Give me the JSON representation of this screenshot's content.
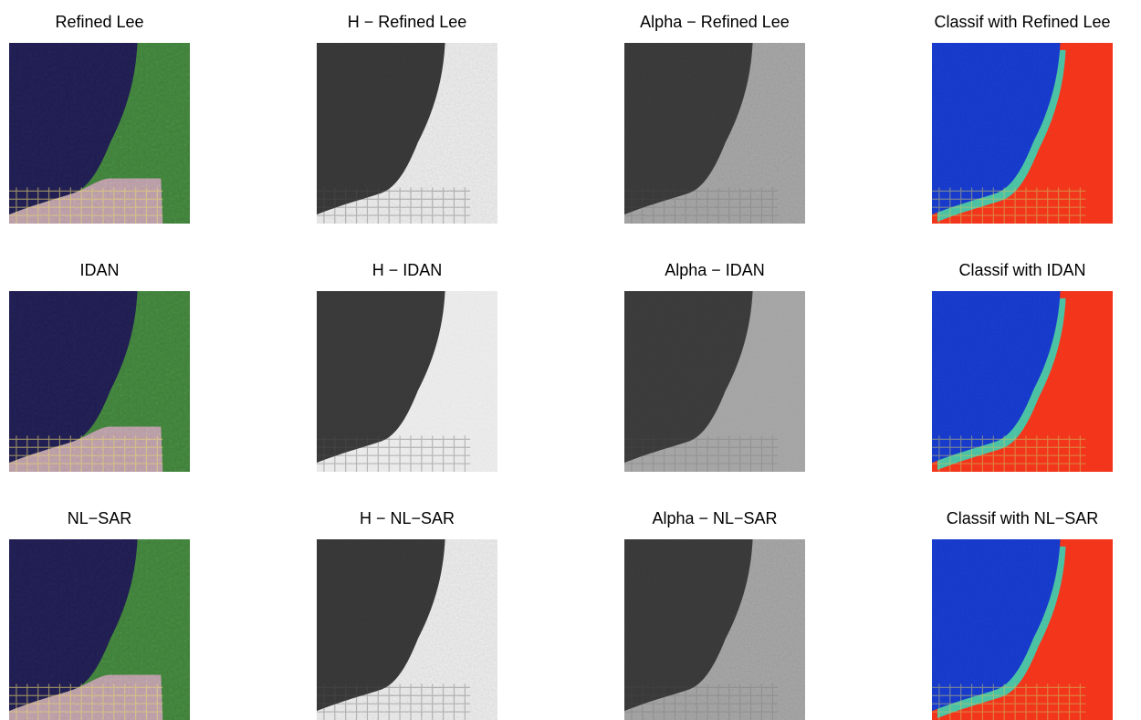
{
  "panels": [
    {
      "title": "Refined Lee",
      "kind": "rgb",
      "variant": "refined"
    },
    {
      "title": "H − Refined Lee",
      "kind": "entropy",
      "variant": "refined"
    },
    {
      "title": "Alpha − Refined Lee",
      "kind": "alpha",
      "variant": "refined"
    },
    {
      "title": "Classif with Refined Lee",
      "kind": "classif",
      "variant": "refined"
    },
    {
      "title": "IDAN",
      "kind": "rgb",
      "variant": "idan"
    },
    {
      "title": "H − IDAN",
      "kind": "entropy",
      "variant": "idan"
    },
    {
      "title": "Alpha − IDAN",
      "kind": "alpha",
      "variant": "idan"
    },
    {
      "title": "Classif with IDAN",
      "kind": "classif",
      "variant": "idan"
    },
    {
      "title": "NL−SAR",
      "kind": "rgb",
      "variant": "nlsar"
    },
    {
      "title": "H − NL−SAR",
      "kind": "entropy",
      "variant": "nlsar"
    },
    {
      "title": "Alpha − NL−SAR",
      "kind": "alpha",
      "variant": "nlsar"
    },
    {
      "title": "Classif with NL−SAR",
      "kind": "classif",
      "variant": "nlsar"
    }
  ],
  "colors": {
    "water_rgb": "#1f1d4e",
    "vegetation_rgb": "#3f7d3a",
    "urban_rgb": "#b89aa3",
    "classif_low": "#1638c9",
    "classif_mid": "#49c0a0",
    "classif_high": "#f2331a",
    "gray_dark": "#2a2a2a",
    "gray_light": "#efefef"
  }
}
